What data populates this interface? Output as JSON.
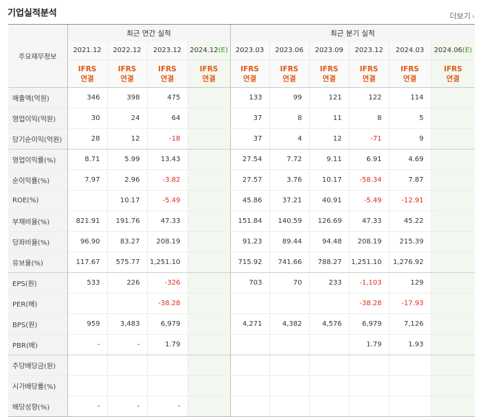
{
  "section_title": "기업실적분석",
  "more_label": "더보기",
  "more_icon": "chevron-right-icon",
  "corner_label": "주요재무정보",
  "annual_header": "최근 연간 실적",
  "quarter_header": "최근 분기 실적",
  "periods": [
    {
      "label": "2021.12",
      "estimate": false
    },
    {
      "label": "2022.12",
      "estimate": false
    },
    {
      "label": "2023.12",
      "estimate": false
    },
    {
      "label": "2024.12",
      "estimate": true,
      "estimate_mark": "(E)"
    },
    {
      "label": "2023.03",
      "estimate": false
    },
    {
      "label": "2023.06",
      "estimate": false
    },
    {
      "label": "2023.09",
      "estimate": false
    },
    {
      "label": "2023.12",
      "estimate": false
    },
    {
      "label": "2024.03",
      "estimate": false
    },
    {
      "label": "2024.06",
      "estimate": true,
      "estimate_mark": "(E)"
    }
  ],
  "basis_line1": "IFRS",
  "basis_line2": "연결",
  "negative_color": "#e0281e",
  "rows": [
    {
      "label": "매출액(억원)",
      "values": [
        "346",
        "398",
        "475",
        "",
        "133",
        "99",
        "121",
        "122",
        "114",
        ""
      ]
    },
    {
      "label": "영업이익(억원)",
      "values": [
        "30",
        "24",
        "64",
        "",
        "37",
        "8",
        "11",
        "8",
        "5",
        ""
      ]
    },
    {
      "label": "당기순이익(억원)",
      "values": [
        "28",
        "12",
        "-18",
        "",
        "37",
        "4",
        "12",
        "-71",
        "9",
        ""
      ]
    },
    {
      "label": "영업이익률(%)",
      "values": [
        "8.71",
        "5.99",
        "13.43",
        "",
        "27.54",
        "7.72",
        "9.11",
        "6.91",
        "4.69",
        ""
      ]
    },
    {
      "label": "순이익률(%)",
      "values": [
        "7.97",
        "2.96",
        "-3.82",
        "",
        "27.57",
        "3.76",
        "10.17",
        "-58.34",
        "7.87",
        ""
      ]
    },
    {
      "label": "ROE(%)",
      "values": [
        "",
        "10.17",
        "-5.49",
        "",
        "45.86",
        "37.21",
        "40.91",
        "-5.49",
        "-12.91",
        ""
      ]
    },
    {
      "label": "부채비율(%)",
      "values": [
        "821.91",
        "191.76",
        "47.33",
        "",
        "151.84",
        "140.59",
        "126.69",
        "47.33",
        "45.22",
        ""
      ]
    },
    {
      "label": "당좌비율(%)",
      "values": [
        "96.90",
        "83.27",
        "208.19",
        "",
        "91.23",
        "89.44",
        "94.48",
        "208.19",
        "215.39",
        ""
      ]
    },
    {
      "label": "유보율(%)",
      "values": [
        "117.67",
        "575.77",
        "1,251.10",
        "",
        "715.92",
        "741.66",
        "788.27",
        "1,251.10",
        "1,276.92",
        ""
      ]
    },
    {
      "label": "EPS(원)",
      "values": [
        "533",
        "226",
        "-326",
        "",
        "703",
        "70",
        "233",
        "-1,103",
        "129",
        ""
      ]
    },
    {
      "label": "PER(배)",
      "values": [
        "",
        "",
        "-38.28",
        "",
        "",
        "",
        "",
        "-38.28",
        "-17.93",
        ""
      ]
    },
    {
      "label": "BPS(원)",
      "values": [
        "959",
        "3,483",
        "6,979",
        "",
        "4,271",
        "4,382",
        "4,576",
        "6,979",
        "7,126",
        ""
      ]
    },
    {
      "label": "PBR(배)",
      "values": [
        "-",
        "-",
        "1.79",
        "",
        "",
        "",
        "",
        "1.79",
        "1.93",
        ""
      ]
    },
    {
      "label": "주당배당금(원)",
      "values": [
        "",
        "",
        "",
        "",
        "",
        "",
        "",
        "",
        "",
        ""
      ]
    },
    {
      "label": "시가배당률(%)",
      "values": [
        "",
        "",
        "",
        "",
        "",
        "",
        "",
        "",
        "",
        ""
      ]
    },
    {
      "label": "배당성향(%)",
      "values": [
        "-",
        "-",
        "-",
        "",
        "",
        "",
        "",
        "",
        "",
        ""
      ]
    }
  ]
}
